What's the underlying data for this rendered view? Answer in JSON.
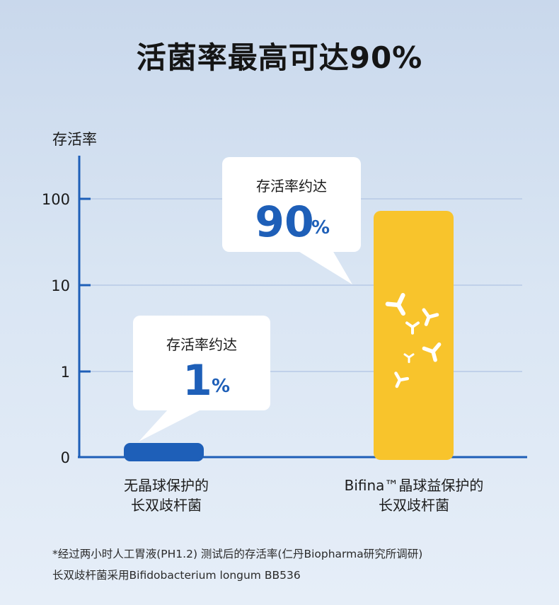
{
  "title": "活菌率最高可达90%",
  "chart_data": {
    "type": "bar",
    "ylabel": "存活率",
    "y_scale": "log",
    "y_ticks": [
      "0",
      "1",
      "10",
      "100"
    ],
    "categories": [
      [
        "无晶球保护的",
        "长双歧杆菌"
      ],
      [
        "Bifina™晶球益保护的",
        "长双歧杆菌"
      ]
    ],
    "values": [
      1,
      90
    ],
    "unit": "%",
    "colors": [
      "#1e5fb8",
      "#f8c42c"
    ],
    "callouts": [
      {
        "text": "存活率约达",
        "value": "1",
        "unit": "%"
      },
      {
        "text": "存活率约达",
        "value": "90",
        "unit": "%"
      }
    ],
    "grid": true
  },
  "footnote": [
    "*经过两小时人工胃液(PH1.2) 测试后的存活率(仁丹Biopharma研究所调研)",
    "长双歧杆菌采用Bifidobacterium longum BB536"
  ],
  "decor": {
    "icon": "y-shape-bacteria-icon",
    "axis_color": "#1e5fb8",
    "grid_color": "#b7c9e6",
    "value_color": "#1e5fb8"
  }
}
